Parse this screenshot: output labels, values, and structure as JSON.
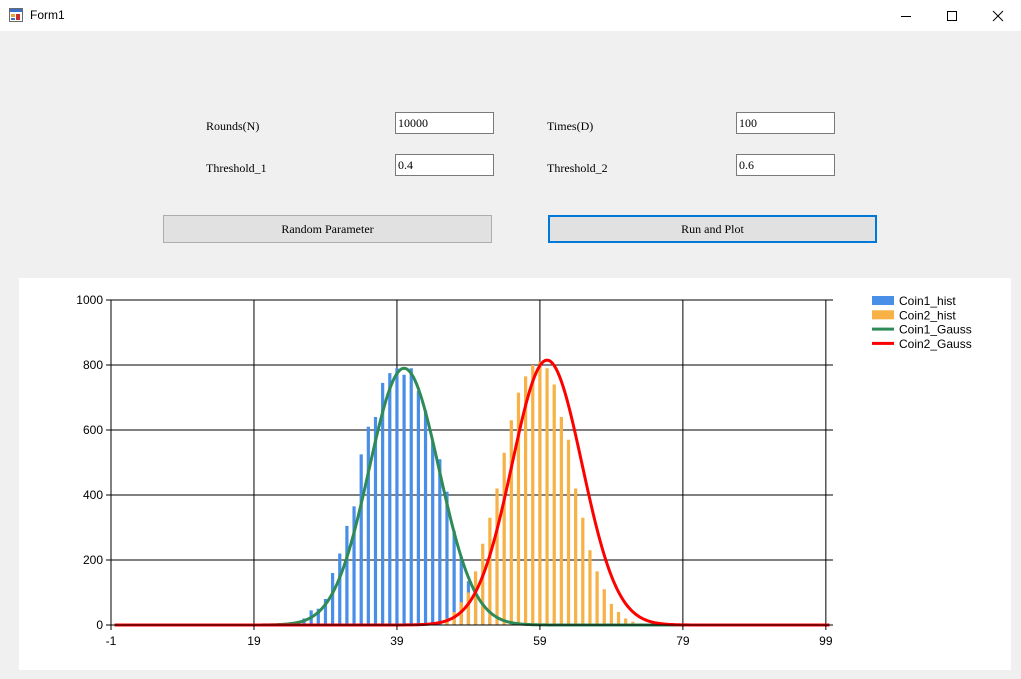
{
  "window": {
    "title": "Form1"
  },
  "form": {
    "rounds_label": "Rounds(N)",
    "rounds_value": "10000",
    "times_label": "Times(D)",
    "times_value": "100",
    "threshold1_label": "Threshold_1",
    "threshold1_value": "0.4",
    "threshold2_label": "Threshold_2",
    "threshold2_value": "0.6",
    "random_button": "Random Parameter",
    "run_button": "Run and Plot"
  },
  "chart_data": {
    "type": "bar",
    "title": "",
    "xlabel": "",
    "ylabel": "",
    "xlim": [
      -1,
      100
    ],
    "ylim": [
      0,
      1000
    ],
    "x_ticks": [
      -1,
      19,
      39,
      59,
      79,
      99
    ],
    "y_ticks": [
      0,
      200,
      400,
      600,
      800,
      1000
    ],
    "grid": true,
    "legend_position": "top-right",
    "series": [
      {
        "name": "Coin1_hist",
        "kind": "bar",
        "color": "#4a8fe7",
        "x": [
          25,
          26,
          27,
          28,
          29,
          30,
          31,
          32,
          33,
          34,
          35,
          36,
          37,
          38,
          39,
          40,
          41,
          42,
          43,
          44,
          45,
          46,
          47,
          48,
          49,
          50,
          51,
          52
        ],
        "values": [
          10,
          20,
          45,
          50,
          80,
          160,
          220,
          305,
          365,
          525,
          610,
          640,
          745,
          775,
          790,
          770,
          790,
          720,
          660,
          565,
          510,
          410,
          290,
          210,
          135,
          85,
          50,
          25
        ]
      },
      {
        "name": "Coin2_hist",
        "kind": "bar",
        "color": "#f7b144",
        "x": [
          46,
          47,
          48,
          49,
          50,
          51,
          52,
          53,
          54,
          55,
          56,
          57,
          58,
          59,
          60,
          61,
          62,
          63,
          64,
          65,
          66,
          67,
          68,
          69,
          70,
          71,
          72,
          73
        ],
        "values": [
          20,
          40,
          70,
          100,
          165,
          250,
          330,
          420,
          530,
          630,
          715,
          765,
          800,
          810,
          790,
          740,
          640,
          570,
          420,
          330,
          230,
          165,
          110,
          65,
          40,
          20,
          10,
          5
        ]
      },
      {
        "name": "Coin1_Gauss",
        "kind": "line",
        "color": "#2e8b57",
        "mean": 40,
        "sd": 4.9,
        "peak": 790
      },
      {
        "name": "Coin2_Gauss",
        "kind": "line",
        "color": "#ff0000",
        "mean": 60,
        "sd": 4.9,
        "peak": 815
      }
    ]
  }
}
